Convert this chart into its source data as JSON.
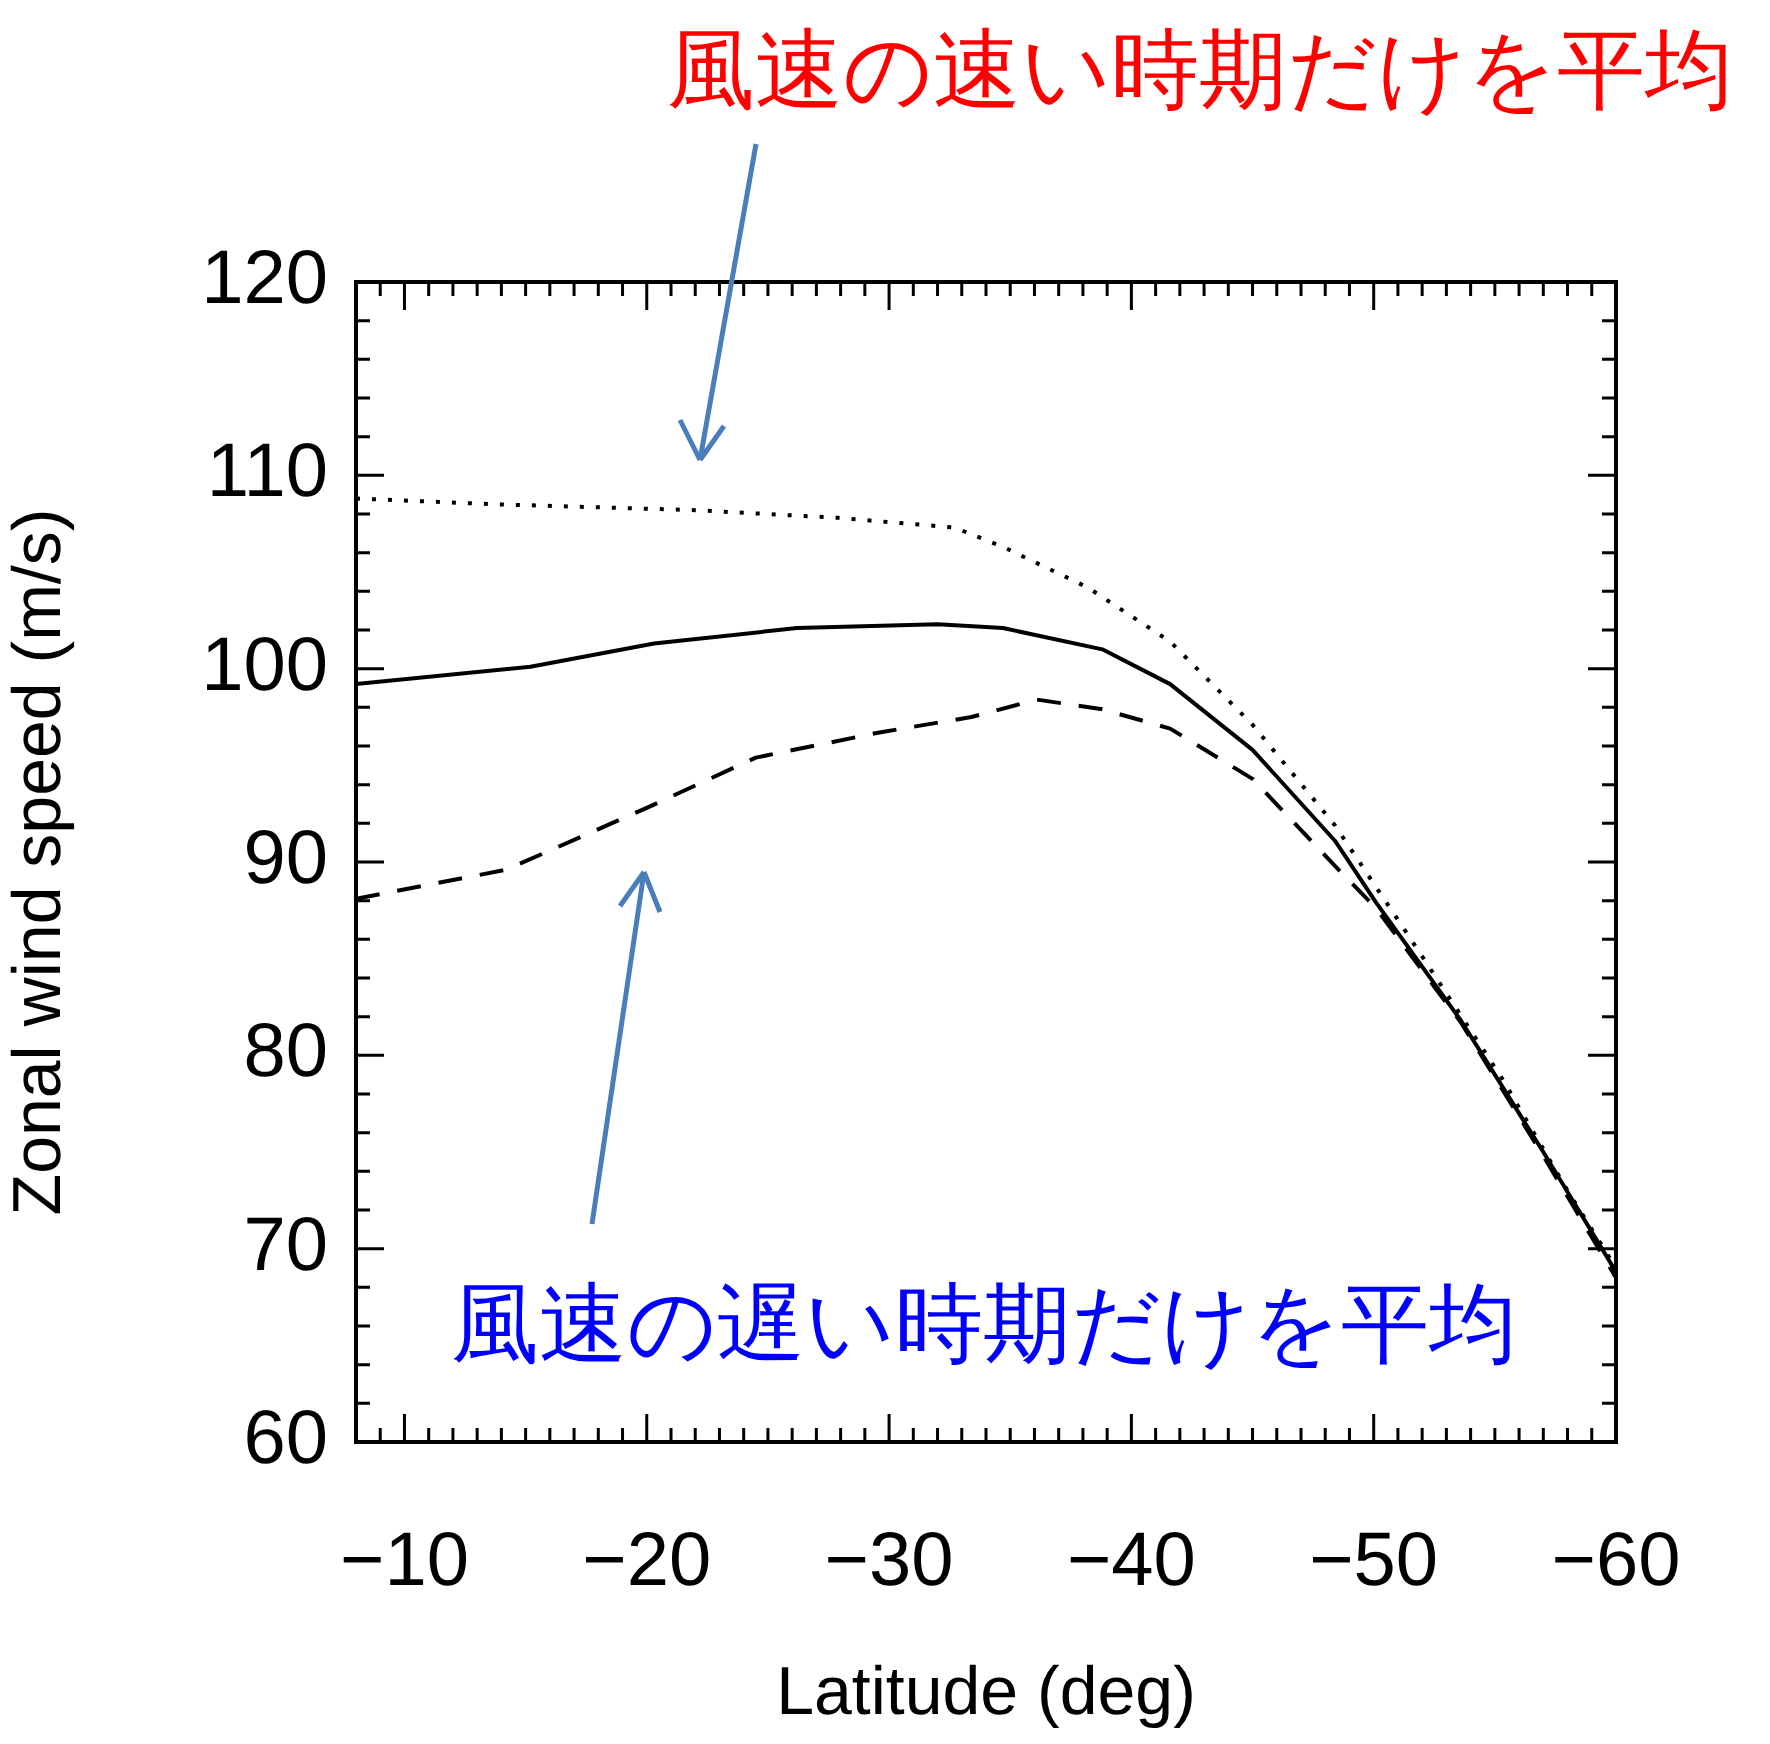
{
  "chart_data": {
    "type": "line",
    "xlabel": "Latitude (deg)",
    "ylabel": "Zonal wind speed (m/s)",
    "xlim": [
      -8,
      -60
    ],
    "xticks": [
      {
        "value": -10,
        "label": "−10"
      },
      {
        "value": -20,
        "label": "−20"
      },
      {
        "value": -30,
        "label": "−30"
      },
      {
        "value": -40,
        "label": "−40"
      },
      {
        "value": -50,
        "label": "−50"
      },
      {
        "value": -60,
        "label": "−60"
      }
    ],
    "ylim": [
      60,
      120
    ],
    "yticks": [
      60,
      70,
      80,
      90,
      100,
      110,
      120
    ],
    "grid": false,
    "legend": false,
    "marker": "none",
    "series": [
      {
        "color": "#000000",
        "line_style": "dotted",
        "x": [
          -8,
          -13.8,
          -22,
          -27.9,
          -32.7,
          -34.7,
          -38.2,
          -41.6,
          -45,
          -48.4,
          -51.8,
          -55.3,
          -58,
          -60
        ],
        "values": [
          108.8,
          108.5,
          108.2,
          107.8,
          107.3,
          106.3,
          104.2,
          101.4,
          97.1,
          91.9,
          85.5,
          78.8,
          73,
          69
        ]
      },
      {
        "color": "#000000",
        "line_style": "solid",
        "x": [
          -8,
          -15.2,
          -20.3,
          -26.2,
          -32,
          -34.7,
          -38.8,
          -41.6,
          -45,
          -48.4,
          -50.1,
          -53.6,
          -57,
          -60
        ],
        "values": [
          99.2,
          100.1,
          101.3,
          102.1,
          102.3,
          102.1,
          101,
          99.2,
          95.8,
          91.1,
          87.9,
          81.8,
          75,
          68.8
        ]
      },
      {
        "color": "#000000",
        "line_style": "dashed",
        "x": [
          -8,
          -14.2,
          -20,
          -24.5,
          -29.6,
          -33.4,
          -36.1,
          -38.8,
          -41.6,
          -45,
          -48.4,
          -50.1,
          -53.6,
          -57,
          -60
        ],
        "values": [
          88.1,
          89.6,
          92.8,
          95.4,
          96.7,
          97.5,
          98.4,
          97.9,
          96.9,
          94.3,
          89.8,
          87.6,
          81.7,
          74.8,
          68.5
        ]
      }
    ],
    "annotations": [
      "風速の速い時期だけを平均",
      "風速の遅い時期だけを平均"
    ]
  }
}
